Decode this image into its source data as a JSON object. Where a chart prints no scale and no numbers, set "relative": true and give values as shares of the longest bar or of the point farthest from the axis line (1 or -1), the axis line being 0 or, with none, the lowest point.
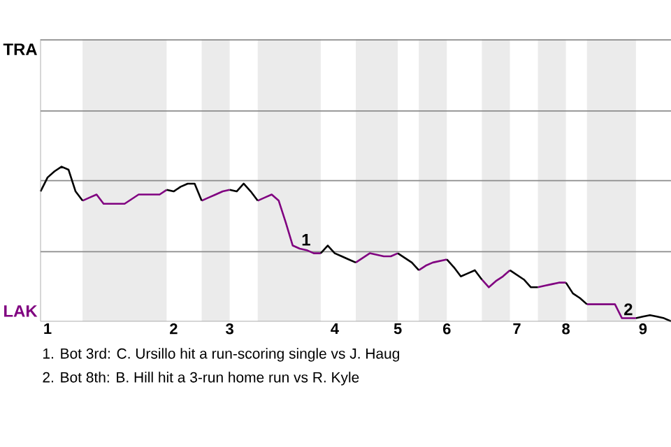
{
  "chart_data": {
    "type": "line",
    "relative": true,
    "categories": [
      null,
      "1",
      null,
      null,
      null,
      null,
      null,
      null,
      null,
      null,
      null,
      null,
      null,
      null,
      null,
      null,
      null,
      null,
      null,
      "2",
      null,
      null,
      null,
      null,
      null,
      null,
      null,
      "3",
      null,
      null,
      null,
      null,
      null,
      null,
      null,
      null,
      null,
      null,
      null,
      null,
      null,
      null,
      "4",
      null,
      null,
      null,
      null,
      null,
      null,
      null,
      null,
      "5",
      null,
      null,
      null,
      null,
      null,
      null,
      "6",
      null,
      null,
      null,
      null,
      null,
      null,
      null,
      null,
      null,
      "7",
      null,
      null,
      null,
      null,
      null,
      null,
      "8",
      null,
      null,
      null,
      null,
      null,
      null,
      null,
      null,
      null,
      null,
      "9",
      null,
      null,
      null,
      null
    ],
    "marker": "none",
    "line_style": "solid",
    "ref_lines": [
      {
        "axis": "y",
        "value": 0.45,
        "color": "#8c8c8c"
      },
      {
        "axis": "y",
        "value": 0.91,
        "color": "#8c8c8c"
      },
      {
        "axis": "y",
        "value": 1.36,
        "color": "#8c8c8c"
      },
      {
        "axis": "y",
        "value": 1.82,
        "color": "#8c8c8c"
      }
    ],
    "series": [
      {
        "name": "LAK",
        "color": "#800080",
        "values": [
          null,
          null,
          null,
          null,
          null,
          null,
          0.78,
          0.8,
          0.82,
          0.76,
          0.76,
          0.76,
          0.76,
          0.79,
          0.82,
          0.82,
          0.82,
          0.82,
          0.85,
          null,
          null,
          null,
          null,
          0.78,
          0.8,
          0.82,
          0.84,
          0.85,
          null,
          null,
          null,
          0.78,
          0.8,
          0.82,
          0.78,
          0.64,
          0.49,
          0.47,
          0.46,
          0.44,
          0.44,
          null,
          null,
          null,
          null,
          0.38,
          0.41,
          0.44,
          0.43,
          0.42,
          0.42,
          0.44,
          null,
          null,
          0.33,
          0.36,
          0.38,
          0.39,
          0.4,
          null,
          null,
          null,
          null,
          0.27,
          0.22,
          0.26,
          0.29,
          0.33,
          null,
          null,
          null,
          0.22,
          0.23,
          0.24,
          0.25,
          0.25,
          null,
          null,
          0.11,
          0.11,
          0.11,
          0.11,
          0.11,
          0.02,
          0.02,
          0.02,
          null,
          null,
          null,
          null,
          null
        ]
      },
      {
        "name": "TRA",
        "color": "#000000",
        "values": [
          0.84,
          0.93,
          0.97,
          1,
          0.98,
          0.84,
          0.78,
          null,
          null,
          null,
          null,
          null,
          null,
          null,
          null,
          null,
          null,
          null,
          0.85,
          0.84,
          0.87,
          0.89,
          0.89,
          0.78,
          null,
          null,
          null,
          0.85,
          0.84,
          0.89,
          0.84,
          0.78,
          null,
          null,
          null,
          null,
          null,
          null,
          null,
          null,
          0.44,
          0.49,
          0.44,
          0.42,
          0.4,
          0.38,
          null,
          null,
          null,
          null,
          null,
          0.44,
          0.41,
          0.38,
          0.33,
          null,
          null,
          null,
          0.4,
          0.35,
          0.29,
          0.31,
          0.33,
          0.27,
          null,
          null,
          null,
          0.33,
          0.3,
          0.27,
          0.22,
          0.22,
          null,
          null,
          null,
          0.25,
          0.18,
          0.15,
          0.11,
          null,
          null,
          null,
          null,
          null,
          null,
          0.02,
          0.03,
          0.04,
          0.03,
          0.02,
          0
        ]
      }
    ],
    "annotations": [
      {
        "text": "1",
        "y": 0.47
      },
      {
        "text": "2",
        "y": 0.02
      },
      "1. Bot 3rd: C. Ursillo hit a run-scoring single vs J. Haug",
      "2. Bot 8th: B. Hill hit a 3-run home run vs R. Kyle"
    ]
  }
}
